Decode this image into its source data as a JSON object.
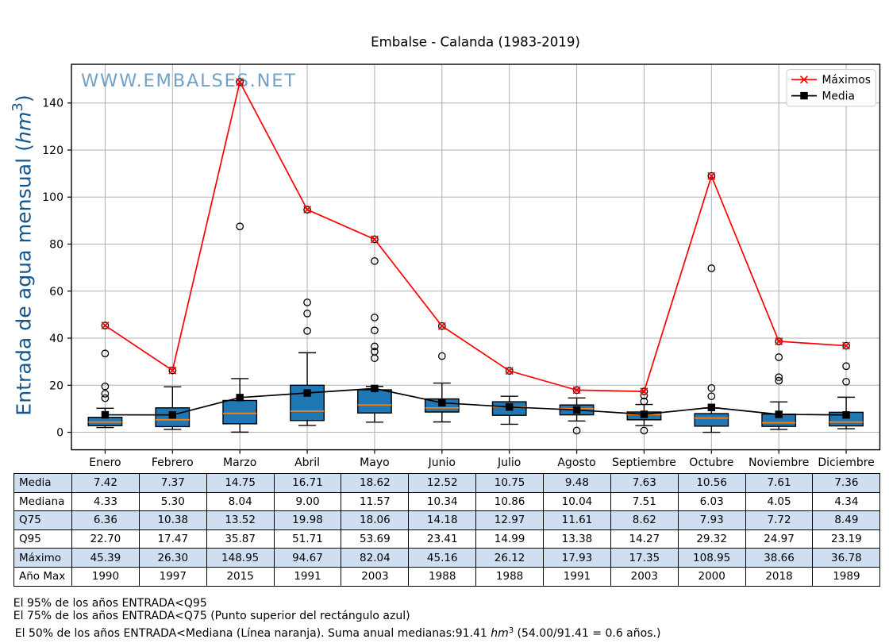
{
  "title": "Embalse - Calanda (1983-2019)",
  "watermark": "WWW.EMBALSES.NET",
  "y_axis": {
    "label_prefix": "Entrada de agua mensual (",
    "label_unit": "hm",
    "label_exponent": "3",
    "label_suffix": ")",
    "tick_labels": [
      "0",
      "20",
      "40",
      "60",
      "80",
      "100",
      "120",
      "140"
    ]
  },
  "legend": {
    "maximos_label": "Máximos",
    "media_label": "Media"
  },
  "colors": {
    "box_fill": "#1f77b4",
    "box_edge": "#000000",
    "median": "#ff7f0e",
    "maximos_line": "#ff0000",
    "media_line": "#000000",
    "grid": "#b0b0b0",
    "watermark": "#74a1c7",
    "ylabel": "#15568d",
    "table_shade": "#cfdff2"
  },
  "chart_data": {
    "type": "box",
    "title": "Embalse - Calanda (1983-2019)",
    "ylabel": "Entrada de agua mensual (hm3)",
    "categories": [
      "Enero",
      "Febrero",
      "Marzo",
      "Abril",
      "Mayo",
      "Junio",
      "Julio",
      "Agosto",
      "Septiembre",
      "Octubre",
      "Noviembre",
      "Diciembre"
    ],
    "ylim": [
      -7.45,
      156.45
    ],
    "yticks": [
      0,
      20,
      40,
      60,
      80,
      100,
      120,
      140
    ],
    "grid": true,
    "legend_position": "upper right",
    "series": [
      {
        "name": "Máximos",
        "type": "line",
        "color": "#ff0000",
        "marker": "x",
        "values": [
          45.39,
          26.3,
          148.95,
          94.67,
          82.04,
          45.16,
          26.12,
          17.93,
          17.35,
          108.95,
          38.66,
          36.78
        ]
      },
      {
        "name": "Media",
        "type": "line",
        "color": "#000000",
        "marker": "square",
        "values": [
          7.42,
          7.37,
          14.75,
          16.71,
          18.62,
          12.52,
          10.75,
          9.48,
          7.63,
          10.56,
          7.61,
          7.36
        ]
      }
    ],
    "boxplot": {
      "median": [
        4.33,
        5.3,
        8.04,
        9.0,
        11.57,
        10.34,
        10.86,
        10.04,
        7.51,
        6.03,
        4.05,
        4.34
      ],
      "q1": [
        2.8,
        2.4,
        3.6,
        5.0,
        8.2,
        8.6,
        7.2,
        7.4,
        5.3,
        2.6,
        2.5,
        2.7
      ],
      "q3": [
        6.36,
        10.38,
        13.52,
        19.98,
        18.06,
        14.18,
        12.97,
        11.61,
        8.62,
        7.93,
        7.72,
        8.49
      ],
      "whisker_low": [
        2.0,
        1.2,
        0.05,
        2.9,
        4.3,
        4.4,
        3.4,
        4.8,
        2.8,
        0.0,
        1.2,
        1.5
      ],
      "whisker_high": [
        10.2,
        19.3,
        22.8,
        33.8,
        19.5,
        20.9,
        15.3,
        14.6,
        11.8,
        10.3,
        12.9,
        14.9
      ],
      "fliers": [
        [
          14.5,
          16.4,
          19.5,
          33.5,
          45.39
        ],
        [
          26.3
        ],
        [
          87.5,
          148.95
        ],
        [
          43.1,
          50.5,
          55.2,
          94.67
        ],
        [
          31.5,
          34.3,
          36.5,
          43.3,
          48.8,
          72.8,
          82.04
        ],
        [
          32.4,
          45.16
        ],
        [
          26.12
        ],
        [
          0.7,
          17.93
        ],
        [
          0.7,
          13.1,
          15.6,
          17.35
        ],
        [
          15.3,
          18.8,
          69.7,
          108.95
        ],
        [
          21.9,
          23.4,
          31.9,
          38.66
        ],
        [
          21.5,
          28.1,
          36.78
        ]
      ]
    }
  },
  "table": {
    "row_labels": [
      "Media",
      "Mediana",
      "Q75",
      "Q95",
      "Máximo",
      "Año Max"
    ],
    "shaded_rows": [
      0,
      2,
      4
    ],
    "rows": [
      [
        "7.42",
        "7.37",
        "14.75",
        "16.71",
        "18.62",
        "12.52",
        "10.75",
        "9.48",
        "7.63",
        "10.56",
        "7.61",
        "7.36"
      ],
      [
        "4.33",
        "5.30",
        "8.04",
        "9.00",
        "11.57",
        "10.34",
        "10.86",
        "10.04",
        "7.51",
        "6.03",
        "4.05",
        "4.34"
      ],
      [
        "6.36",
        "10.38",
        "13.52",
        "19.98",
        "18.06",
        "14.18",
        "12.97",
        "11.61",
        "8.62",
        "7.93",
        "7.72",
        "8.49"
      ],
      [
        "22.70",
        "17.47",
        "35.87",
        "51.71",
        "53.69",
        "23.41",
        "14.99",
        "13.38",
        "14.27",
        "29.32",
        "24.97",
        "23.19"
      ],
      [
        "45.39",
        "26.30",
        "148.95",
        "94.67",
        "82.04",
        "45.16",
        "26.12",
        "17.93",
        "17.35",
        "108.95",
        "38.66",
        "36.78"
      ],
      [
        "1990",
        "1997",
        "2015",
        "1991",
        "2003",
        "1988",
        "1988",
        "1991",
        "2003",
        "2000",
        "2018",
        "1989"
      ]
    ]
  },
  "footnotes": {
    "line1": "El 95% de los años ENTRADA<Q95",
    "line2": "El 75% de los años ENTRADA<Q75 (Punto superior del rectángulo azul)",
    "line3_pre": "El 50% de los años ENTRADA<Mediana (Línea naranja). Suma anual medianas:91.41 ",
    "line3_unit": "hm",
    "line3_exponent": "3",
    "line3_post": " (54.00/91.41 = 0.6 años.)"
  }
}
